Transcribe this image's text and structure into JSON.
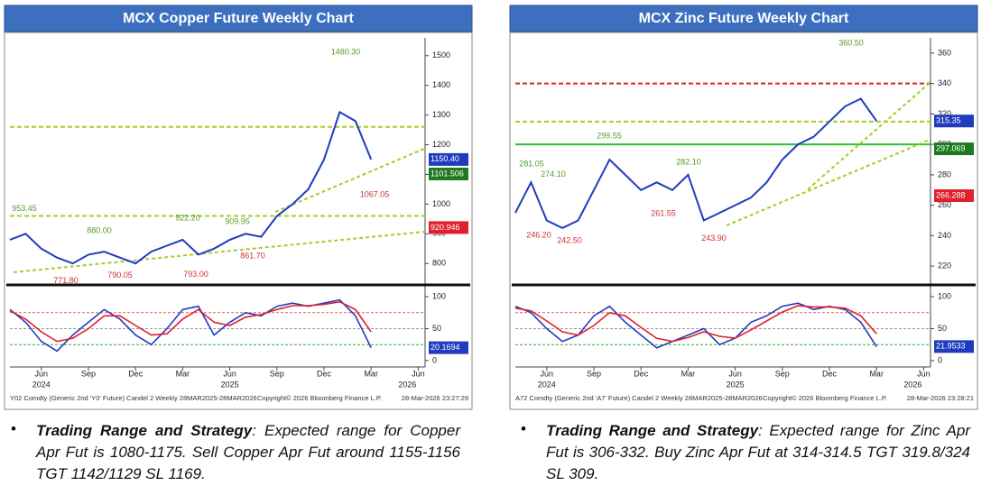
{
  "chart_data": [
    {
      "type": "line",
      "title": "MCX Copper Future Weekly Chart",
      "categories": [
        null,
        null,
        "Jun",
        null,
        null,
        "Sep",
        null,
        null,
        "Dec",
        null,
        null,
        "Mar",
        null,
        null,
        "Jun",
        null,
        null,
        "Sep",
        null,
        null,
        "Dec",
        null,
        null,
        "Mar",
        null,
        null,
        "Jun"
      ],
      "year_labels": [
        "2024",
        "2025",
        "2026"
      ],
      "color": "#1f3cbf",
      "values": [
        880,
        900,
        850,
        820,
        800,
        830,
        840,
        820,
        800,
        840,
        860,
        880,
        830,
        850,
        880,
        900,
        890,
        960,
        1000,
        1050,
        1150,
        1310,
        1280,
        1150.4,
        null,
        null,
        null
      ],
      "ylim": [
        740,
        1560
      ],
      "yticks": [
        800,
        900,
        1000,
        1100,
        1200,
        1300,
        1400,
        1500
      ],
      "levels": [
        {
          "value": 1260,
          "color": "#a8cc2a"
        },
        {
          "value": 960,
          "color": "#a8cc2a"
        }
      ],
      "annotations": [
        {
          "value": 1480.3,
          "label": "1480.30",
          "color": "#5a9a2a"
        },
        {
          "value": 953.45,
          "label": "953.45",
          "color": "#5a9a2a"
        },
        {
          "value": 880,
          "label": "880.00",
          "color": "#5a9a2a"
        },
        {
          "value": 922.2,
          "label": "922.20",
          "color": "#5a9a2a"
        },
        {
          "value": 909.95,
          "label": "909.95",
          "color": "#5a9a2a"
        },
        {
          "value": 861.7,
          "label": "861.70",
          "color": "#d03030"
        },
        {
          "value": 793,
          "label": "793.00",
          "color": "#d03030"
        },
        {
          "value": 790.05,
          "label": "790.05",
          "color": "#d03030"
        },
        {
          "value": 771.8,
          "label": "771.80",
          "color": "#d03030"
        },
        {
          "value": 1067.05,
          "label": "1067.05",
          "color": "#d03030"
        }
      ],
      "price_boxes": [
        {
          "value": 1150.4,
          "label": "1150.40",
          "color": "#1f3cbf"
        },
        {
          "value": 1101.506,
          "label": "1101.506",
          "color": "#1e7a1e"
        },
        {
          "value": 920.946,
          "label": "920.946",
          "color": "#e0202a"
        }
      ],
      "oscillator": {
        "ylim": [
          -10,
          110
        ],
        "yticks": [
          0,
          50,
          100
        ],
        "levels": [
          {
            "value": 75,
            "color": "#e06060"
          },
          {
            "value": 50,
            "color": "#999999"
          },
          {
            "value": 25,
            "color": "#3aa03a"
          }
        ],
        "series": [
          {
            "color": "#1f3cbf",
            "values": [
              80,
              60,
              30,
              15,
              40,
              60,
              80,
              65,
              40,
              25,
              50,
              80,
              85,
              40,
              60,
              75,
              70,
              85,
              90,
              85,
              90,
              95,
              70,
              20.17,
              null,
              null,
              null
            ]
          },
          {
            "color": "#e0202a",
            "values": [
              78,
              65,
              45,
              30,
              35,
              50,
              70,
              70,
              55,
              40,
              42,
              65,
              80,
              60,
              55,
              68,
              72,
              80,
              86,
              86,
              88,
              92,
              80,
              45,
              null,
              null,
              null
            ]
          }
        ],
        "box": {
          "value": 20.1694,
          "label": "20.1694",
          "color": "#1f3cbf"
        }
      },
      "footer": [
        "Y02 Comdty (Generic 2nd 'Y0' Future) Candel 2 Weekly 28MAR2025-28MAR2026",
        "Copyright© 2026 Bloomberg Finance L.P.",
        "28-Mar-2026 23:27:29"
      ]
    },
    {
      "type": "line",
      "title": "MCX Zinc Future Weekly Chart",
      "categories": [
        null,
        null,
        "Jun",
        null,
        null,
        "Sep",
        null,
        null,
        "Dec",
        null,
        null,
        "Mar",
        null,
        null,
        "Jun",
        null,
        null,
        "Sep",
        null,
        null,
        "Dec",
        null,
        null,
        "Mar",
        null,
        null,
        "Jun"
      ],
      "year_labels": [
        "2024",
        "2025",
        "2026"
      ],
      "color": "#1f3cbf",
      "values": [
        255,
        275,
        250,
        245,
        250,
        270,
        290,
        280,
        270,
        275,
        270,
        280,
        250,
        255,
        260,
        265,
        275,
        290,
        300,
        305,
        315,
        325,
        330,
        315.35,
        null,
        null,
        null
      ],
      "ylim": [
        210,
        370
      ],
      "yticks": [
        220,
        240,
        260,
        280,
        300,
        320,
        340,
        360
      ],
      "levels": [
        {
          "value": 340,
          "color": "#e0202a"
        },
        {
          "value": 315,
          "color": "#a8cc2a"
        },
        {
          "value": 300,
          "color": "#2fc02f"
        }
      ],
      "annotations": [
        {
          "value": 360.5,
          "label": "360.50",
          "color": "#5a9a2a"
        },
        {
          "value": 299.55,
          "label": "299.55",
          "color": "#5a9a2a"
        },
        {
          "value": 281.05,
          "label": "281.05",
          "color": "#5a9a2a"
        },
        {
          "value": 274.1,
          "label": "274.10",
          "color": "#5a9a2a"
        },
        {
          "value": 282.1,
          "label": "282.10",
          "color": "#5a9a2a"
        },
        {
          "value": 261.55,
          "label": "261.55",
          "color": "#d03030"
        },
        {
          "value": 246.2,
          "label": "246.20",
          "color": "#d03030"
        },
        {
          "value": 242.5,
          "label": "242.50",
          "color": "#d03030"
        },
        {
          "value": 243.9,
          "label": "243.90",
          "color": "#d03030"
        }
      ],
      "price_boxes": [
        {
          "value": 315.35,
          "label": "315.35",
          "color": "#1f3cbf"
        },
        {
          "value": 297.069,
          "label": "297.069",
          "color": "#1e7a1e"
        },
        {
          "value": 266.288,
          "label": "266.288",
          "color": "#e0202a"
        }
      ],
      "oscillator": {
        "ylim": [
          -10,
          110
        ],
        "yticks": [
          0,
          50,
          100
        ],
        "levels": [
          {
            "value": 75,
            "color": "#e06060"
          },
          {
            "value": 50,
            "color": "#999999"
          },
          {
            "value": 25,
            "color": "#3aa03a"
          }
        ],
        "series": [
          {
            "color": "#1f3cbf",
            "values": [
              85,
              75,
              50,
              30,
              40,
              70,
              85,
              60,
              40,
              20,
              30,
              40,
              50,
              25,
              35,
              60,
              70,
              85,
              90,
              80,
              85,
              80,
              60,
              21.95,
              null,
              null,
              null
            ]
          },
          {
            "color": "#e0202a",
            "values": [
              82,
              78,
              62,
              45,
              40,
              55,
              75,
              70,
              52,
              35,
              30,
              36,
              45,
              38,
              35,
              48,
              62,
              76,
              86,
              84,
              84,
              82,
              70,
              42,
              null,
              null,
              null
            ]
          }
        ],
        "box": {
          "value": 21.9533,
          "label": "21.9533",
          "color": "#1f3cbf"
        }
      },
      "footer": [
        "A72 Comdty (Generic 2nd 'A7' Future) Candel 2 Weekly 28MAR2025-28MAR2026",
        "Copyright© 2026 Bloomberg Finance L.P.",
        "28-Mar-2026 23:28:21"
      ]
    }
  ],
  "notes": [
    {
      "heading": "Trading Range and Strategy",
      "text": ": Expected range for Copper Apr Fut is 1080-1175. Sell Copper Apr Fut around 1155-1156 TGT 1142/1129 SL 1169."
    },
    {
      "heading": "Trading Range and Strategy",
      "text": ": Expected range for Zinc Apr Fut is 306-332. Buy Zinc Apr Fut at 314-314.5 TGT 319.8/324 SL 309."
    }
  ]
}
